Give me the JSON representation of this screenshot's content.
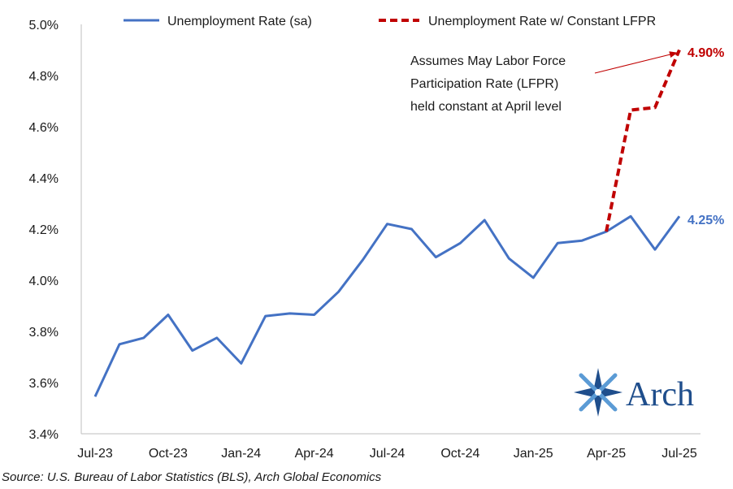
{
  "chart_data": {
    "type": "line",
    "x": [
      "Jul-23",
      "Aug-23",
      "Sep-23",
      "Oct-23",
      "Nov-23",
      "Dec-23",
      "Jan-24",
      "Feb-24",
      "Mar-24",
      "Apr-24",
      "May-24",
      "Jun-24",
      "Jul-24",
      "Aug-24",
      "Sep-24",
      "Oct-24",
      "Nov-24",
      "Dec-24",
      "Jan-25",
      "Feb-25",
      "Mar-25",
      "Apr-25",
      "May-25",
      "Jun-25",
      "Jul-25"
    ],
    "x_tick_labels": [
      "Jul-23",
      "Oct-23",
      "Jan-24",
      "Apr-24",
      "Jul-24",
      "Oct-24",
      "Jan-25",
      "Apr-25",
      "Jul-25"
    ],
    "ylim": [
      3.4,
      5.0
    ],
    "y_tick_labels": [
      "3.4%",
      "3.6%",
      "3.8%",
      "4.0%",
      "4.2%",
      "4.4%",
      "4.6%",
      "4.8%",
      "5.0%"
    ],
    "y_ticks": [
      3.4,
      3.6,
      3.8,
      4.0,
      4.2,
      4.4,
      4.6,
      4.8,
      5.0
    ],
    "grid": false,
    "legend_position": "top",
    "series": [
      {
        "name": "Unemployment Rate (sa)",
        "color": "#4472C4",
        "style": "solid",
        "x": [
          "Jul-23",
          "Aug-23",
          "Sep-23",
          "Oct-23",
          "Nov-23",
          "Dec-23",
          "Jan-24",
          "Feb-24",
          "Mar-24",
          "Apr-24",
          "May-24",
          "Jun-24",
          "Jul-24",
          "Aug-24",
          "Sep-24",
          "Oct-24",
          "Nov-24",
          "Dec-24",
          "Jan-25",
          "Feb-25",
          "Mar-25",
          "Apr-25",
          "May-25",
          "Jun-25",
          "Jul-25"
        ],
        "values": [
          3.545,
          3.75,
          3.775,
          3.865,
          3.725,
          3.775,
          3.675,
          3.86,
          3.87,
          3.865,
          3.955,
          4.08,
          4.22,
          4.2,
          4.09,
          4.145,
          4.235,
          4.085,
          4.01,
          4.145,
          4.155,
          4.19,
          4.25,
          4.12,
          4.25
        ]
      },
      {
        "name": "Unemployment Rate w/ Constant LFPR",
        "color": "#C00000",
        "style": "dashed",
        "x": [
          "Apr-25",
          "May-25",
          "Jun-25",
          "Jul-25"
        ],
        "values": [
          4.19,
          4.665,
          4.675,
          4.9
        ]
      }
    ],
    "end_labels": [
      {
        "series": "Unemployment Rate (sa)",
        "text": "4.25%",
        "color": "#4472C4"
      },
      {
        "series": "Unemployment Rate w/ Constant LFPR",
        "text": "4.90%",
        "color": "#C00000"
      }
    ],
    "annotation": {
      "lines": [
        "Assumes May Labor Force",
        "Participation Rate (LFPR)",
        "held constant at April level"
      ],
      "arrow_color": "#C00000"
    }
  },
  "source": "Source: U.S. Bureau of Labor Statistics (BLS), Arch Global Economics",
  "logo": {
    "text": "Arch",
    "color": "#1F4E8C"
  }
}
